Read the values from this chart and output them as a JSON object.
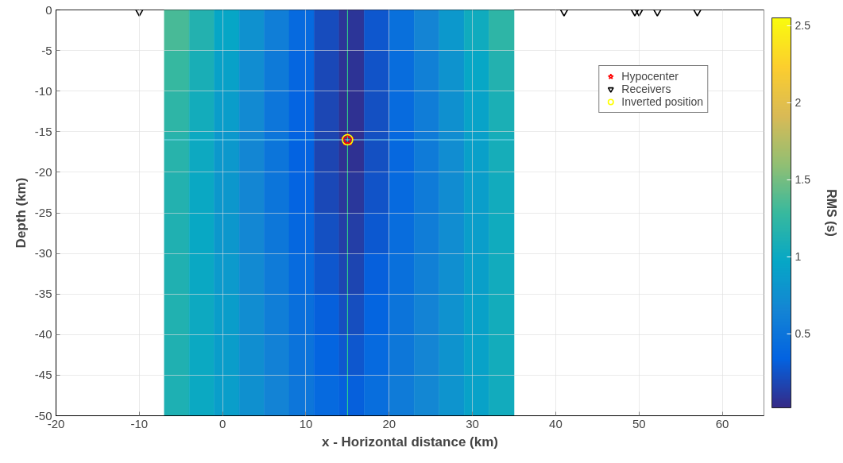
{
  "chart_data": {
    "type": "heatmap",
    "xlabel": "x - Horizontal distance (km)",
    "ylabel": "Depth (km)",
    "clabel": "RMS (s)",
    "xlim": [
      -20,
      65
    ],
    "ylim": [
      -50,
      0
    ],
    "xticks": [
      -20,
      -10,
      0,
      10,
      20,
      30,
      40,
      50,
      60
    ],
    "yticks": [
      0,
      -5,
      -10,
      -15,
      -20,
      -25,
      -30,
      -35,
      -40,
      -45,
      -50
    ],
    "clim": [
      0.02,
      2.55
    ],
    "cticks": [
      0.5,
      1,
      1.5,
      2,
      2.5
    ],
    "grid": true,
    "legend": "top right",
    "x": [
      -5.5,
      -2.5,
      0.5,
      3.5,
      6.5,
      9.5,
      12.5,
      15.5,
      18.5,
      21.5,
      24.5,
      27.5,
      30.5,
      33.5
    ],
    "cells": [
      [
        1.34,
        1.15,
        0.96,
        0.77,
        0.59,
        0.4,
        0.21,
        0.08,
        0.27,
        0.46,
        0.65,
        0.84,
        1.03,
        1.22
      ],
      [
        1.27,
        1.09,
        0.91,
        0.73,
        0.55,
        0.37,
        0.19,
        0.07,
        0.25,
        0.43,
        0.61,
        0.79,
        0.97,
        1.15
      ],
      [
        1.22,
        1.05,
        0.87,
        0.7,
        0.52,
        0.35,
        0.18,
        0.06,
        0.23,
        0.41,
        0.58,
        0.76,
        0.93,
        1.1
      ],
      [
        1.18,
        1.01,
        0.84,
        0.67,
        0.51,
        0.34,
        0.17,
        0.06,
        0.23,
        0.39,
        0.56,
        0.73,
        0.9,
        1.07
      ],
      [
        1.15,
        0.99,
        0.83,
        0.67,
        0.51,
        0.35,
        0.19,
        0.09,
        0.25,
        0.4,
        0.56,
        0.72,
        0.88,
        1.04
      ],
      [
        1.13,
        0.98,
        0.83,
        0.68,
        0.53,
        0.38,
        0.23,
        0.13,
        0.28,
        0.43,
        0.58,
        0.73,
        0.88,
        1.03
      ],
      [
        1.13,
        0.99,
        0.85,
        0.7,
        0.56,
        0.41,
        0.27,
        0.17,
        0.32,
        0.46,
        0.61,
        0.75,
        0.89,
        1.04
      ],
      [
        1.14,
        1.01,
        0.87,
        0.73,
        0.59,
        0.45,
        0.32,
        0.22,
        0.36,
        0.5,
        0.64,
        0.78,
        0.91,
        1.05
      ],
      [
        1.13,
        1.0,
        0.87,
        0.74,
        0.62,
        0.49,
        0.36,
        0.27,
        0.4,
        0.53,
        0.66,
        0.79,
        0.92,
        1.05
      ],
      [
        1.12,
        1.0,
        0.88,
        0.76,
        0.64,
        0.52,
        0.4,
        0.32,
        0.44,
        0.56,
        0.68,
        0.8,
        0.92,
        1.04
      ]
    ],
    "ref_lines": [
      {
        "axis": "x",
        "value": 15,
        "color": "#33dd88"
      },
      {
        "axis": "y",
        "value": -16,
        "color": "#88ddee"
      }
    ],
    "series": [
      {
        "type": "scatter",
        "name": "Hypocenter",
        "color": "#ff0000",
        "marker": "star",
        "x": [
          15
        ],
        "values": [
          -16
        ]
      },
      {
        "type": "scatter",
        "name": "Receivers",
        "color": "#000000",
        "marker": "triangle",
        "x": [
          -10,
          41,
          49.5,
          50,
          52.2,
          57
        ],
        "values": [
          0,
          0,
          0,
          0,
          0,
          0
        ]
      },
      {
        "type": "scatter",
        "name": "Inverted position",
        "color": "#ffff00",
        "marker": "circle",
        "x": [
          15
        ],
        "values": [
          -16
        ]
      }
    ]
  }
}
